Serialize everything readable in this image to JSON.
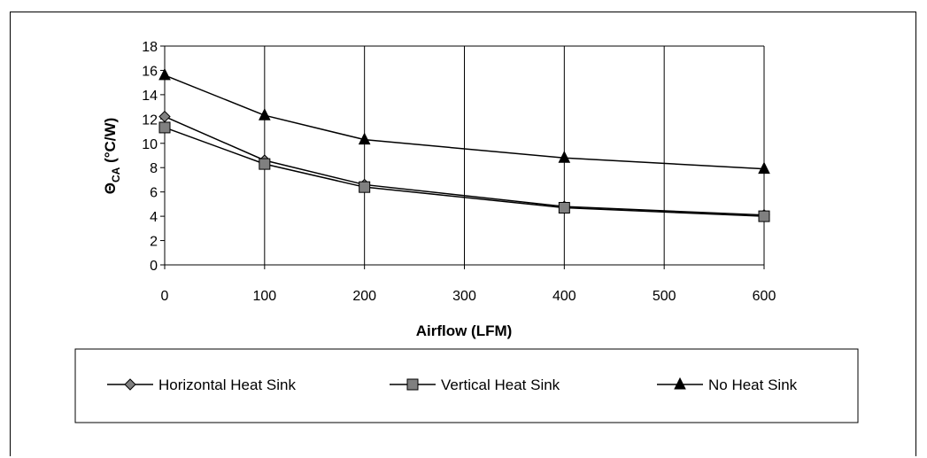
{
  "chart_data": {
    "type": "line",
    "xlabel": "Airflow (LFM)",
    "ylabel_main": "Θ",
    "ylabel_sub": "CA",
    "ylabel_unit": " (°C/W)",
    "xlim": [
      0,
      600
    ],
    "ylim": [
      0,
      18
    ],
    "x_ticks": [
      0,
      100,
      200,
      300,
      400,
      500,
      600
    ],
    "y_ticks": [
      0,
      2,
      4,
      6,
      8,
      10,
      12,
      14,
      16,
      18
    ],
    "grid": "vertical",
    "legend_position": "bottom",
    "series": [
      {
        "name": "Horizontal Heat Sink",
        "marker": "diamond",
        "color": "#808080",
        "x": [
          0,
          100,
          200,
          400,
          600
        ],
        "y": [
          12.2,
          8.6,
          6.6,
          4.8,
          4.1
        ]
      },
      {
        "name": "Vertical Heat Sink",
        "marker": "square",
        "color": "#808080",
        "x": [
          0,
          100,
          200,
          400,
          600
        ],
        "y": [
          11.3,
          8.3,
          6.4,
          4.7,
          4.0
        ]
      },
      {
        "name": "No Heat Sink",
        "marker": "triangle",
        "color": "#000000",
        "x": [
          0,
          100,
          200,
          400,
          600
        ],
        "y": [
          15.6,
          12.3,
          10.3,
          8.8,
          7.9
        ]
      }
    ]
  }
}
